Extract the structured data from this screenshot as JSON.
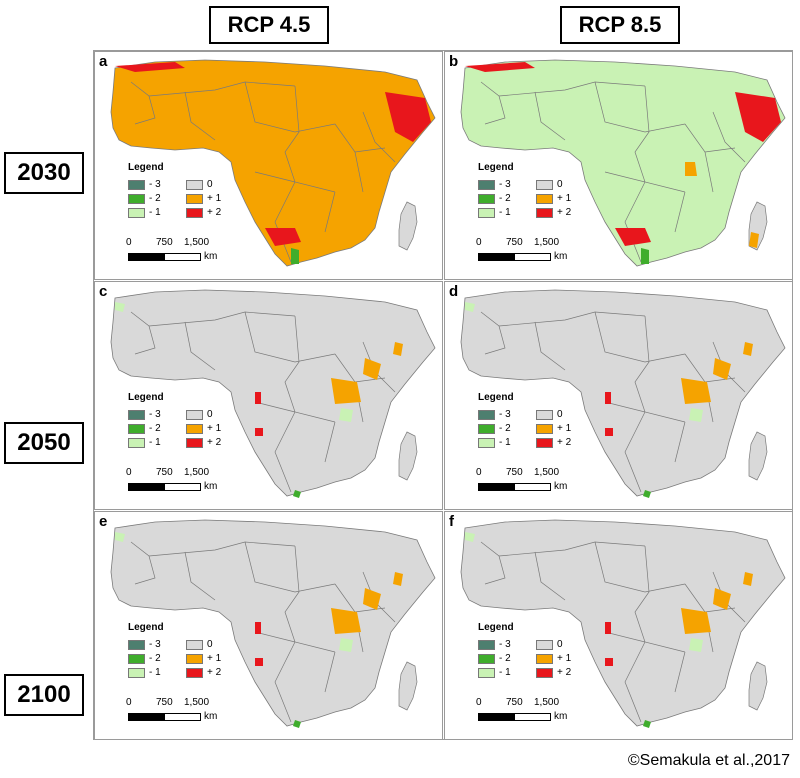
{
  "column_headers": [
    "RCP 4.5",
    "RCP 8.5"
  ],
  "row_headers": [
    "2030",
    "2050",
    "2100"
  ],
  "panels": [
    {
      "letter": "a",
      "scenario": "RCP 4.5",
      "year": "2030",
      "dominant_class": "+ 1"
    },
    {
      "letter": "b",
      "scenario": "RCP 8.5",
      "year": "2030",
      "dominant_class": "- 1"
    },
    {
      "letter": "c",
      "scenario": "RCP 4.5",
      "year": "2050",
      "dominant_class": "0"
    },
    {
      "letter": "d",
      "scenario": "RCP 8.5",
      "year": "2050",
      "dominant_class": "0"
    },
    {
      "letter": "e",
      "scenario": "RCP 4.5",
      "year": "2100",
      "dominant_class": "0"
    },
    {
      "letter": "f",
      "scenario": "RCP 8.5",
      "year": "2100",
      "dominant_class": "0"
    }
  ],
  "legend": {
    "title": "Legend",
    "items": [
      {
        "label": "- 3",
        "color": "#4d7f6f"
      },
      {
        "label": "0",
        "color": "#d9d9d9"
      },
      {
        "label": "- 2",
        "color": "#3fad2c"
      },
      {
        "label": "+ 1",
        "color": "#f5a300"
      },
      {
        "label": "- 1",
        "color": "#c9f2b4"
      },
      {
        "label": "+ 2",
        "color": "#e8161c"
      }
    ]
  },
  "scalebar": {
    "ticks": [
      "0",
      "750",
      "1,500"
    ],
    "unit": "km"
  },
  "credit": "©Semakula et al.,2017",
  "colors": {
    "ocean": "#ffffff",
    "no_data": "#f2f2f2",
    "border": "#7a7a7a",
    "class_0": "#d9d9d9",
    "class_plus1": "#f5a300",
    "class_plus2": "#e8161c",
    "class_minus1": "#c9f2b4",
    "class_minus2": "#3fad2c"
  }
}
